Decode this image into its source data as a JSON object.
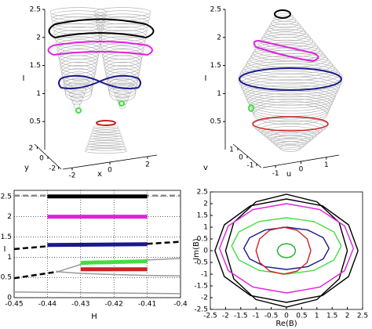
{
  "chart_data": [
    {
      "type": "surface3d",
      "xlabel": "x",
      "ylabel": "y",
      "zlabel": "I",
      "xlim": [
        -2.5,
        2.5
      ],
      "xticks": [
        -2,
        0,
        2
      ],
      "ylim": [
        -2.5,
        2.5
      ],
      "yticks": [
        -2,
        0,
        2
      ],
      "zlim": [
        0,
        2.5
      ],
      "zticks": [
        0.5,
        1,
        1.5,
        2,
        2.5
      ]
    },
    {
      "type": "surface3d",
      "xlabel": "u",
      "ylabel": "v",
      "zlabel": "I",
      "xlim": [
        -1.5,
        1.5
      ],
      "xticks": [
        -1,
        0,
        1
      ],
      "ylim": [
        -1.5,
        1.5
      ],
      "yticks": [
        -1,
        0,
        1
      ],
      "zlim": [
        0,
        2.5
      ],
      "zticks": [
        0.5,
        1,
        1.5,
        2,
        2.5
      ]
    },
    {
      "type": "line",
      "xlabel": "H",
      "ylabel": "I",
      "grid": true,
      "xlim": [
        -0.45,
        -0.4
      ],
      "xticks": [
        -0.45,
        -0.44,
        -0.43,
        -0.42,
        -0.41,
        -0.4
      ],
      "ylim": [
        0,
        2.65
      ],
      "yticks": [
        0,
        0.5,
        1,
        1.5,
        2,
        2.5
      ],
      "series": [
        {
          "color": "#888888",
          "style": "dashed",
          "x": [
            -0.45,
            -0.4
          ],
          "y": [
            2.52,
            2.52
          ]
        },
        {
          "color": "#000000",
          "style": "thick",
          "x": [
            -0.44,
            -0.41
          ],
          "y": [
            2.5,
            2.5
          ]
        },
        {
          "color": "#e020e0",
          "style": "thick",
          "x": [
            -0.44,
            -0.41
          ],
          "y": [
            2.0,
            2.0
          ]
        },
        {
          "color": "#000000",
          "style": "dashed",
          "x": [
            -0.45,
            -0.44
          ],
          "y": [
            1.2,
            1.27
          ]
        },
        {
          "color": "#1a1a8c",
          "style": "thick",
          "x": [
            -0.44,
            -0.41
          ],
          "y": [
            1.3,
            1.32
          ]
        },
        {
          "color": "#000000",
          "style": "dashed",
          "x": [
            -0.41,
            -0.4
          ],
          "y": [
            1.33,
            1.38
          ]
        },
        {
          "color": "#000000",
          "style": "dashed",
          "x": [
            -0.45,
            -0.437
          ],
          "y": [
            0.48,
            0.64
          ]
        },
        {
          "color": "#999999",
          "style": "thin",
          "x": [
            -0.437,
            -0.43,
            -0.42,
            -0.41,
            -0.4
          ],
          "y": [
            0.64,
            0.82,
            0.88,
            0.93,
            0.97
          ]
        },
        {
          "color": "#999999",
          "style": "thin",
          "x": [
            -0.437,
            -0.43,
            -0.42,
            -0.41,
            -0.4
          ],
          "y": [
            0.64,
            0.6,
            0.57,
            0.55,
            0.54
          ]
        },
        {
          "color": "#44dd44",
          "style": "thick",
          "x": [
            -0.43,
            -0.41
          ],
          "y": [
            0.86,
            0.9
          ]
        },
        {
          "color": "#cc2222",
          "style": "thick",
          "x": [
            -0.43,
            -0.41
          ],
          "y": [
            0.7,
            0.7
          ]
        },
        {
          "color": "#999999",
          "style": "thin",
          "x": [
            -0.45,
            -0.4
          ],
          "y": [
            0.14,
            0.1
          ]
        }
      ]
    },
    {
      "type": "line",
      "xlabel": "Re(B)",
      "ylabel": "Im(B)",
      "grid": false,
      "xlim": [
        -2.5,
        2.5
      ],
      "xticks": [
        -2.5,
        -2,
        -1.5,
        -1,
        -0.5,
        0,
        0.5,
        1,
        1.5,
        2,
        2.5
      ],
      "ylim": [
        -2.5,
        2.5
      ],
      "yticks": [
        -2.5,
        -2,
        -1.5,
        -1,
        -0.5,
        0,
        0.5,
        1,
        1.5,
        2,
        2.5
      ],
      "series": [
        {
          "color": "#000000",
          "style": "medium",
          "x": [
            2.35,
            2.04,
            1.18,
            0,
            -1.18,
            -2.04,
            -2.35,
            -2.04,
            -1.18,
            0,
            1.18,
            2.04,
            2.35
          ],
          "y": [
            0,
            1.1,
            1.91,
            2.2,
            1.91,
            1.1,
            0,
            -1.1,
            -1.91,
            -2.2,
            -1.91,
            -1.1,
            0
          ]
        },
        {
          "color": "#000000",
          "style": "medium",
          "x": [
            2,
            1.73,
            1,
            0,
            -1,
            -1.73,
            -2,
            -1.73,
            -1,
            0,
            1,
            1.73,
            2
          ],
          "y": [
            0,
            1.2,
            2.08,
            2.4,
            2.08,
            1.2,
            0,
            -1.2,
            -2.08,
            -2.4,
            -2.08,
            -1.2,
            0
          ]
        },
        {
          "color": "#e020e0",
          "style": "medium",
          "x": [
            2.2,
            1.91,
            1.1,
            0,
            -1.1,
            -1.91,
            -2.2,
            -1.91,
            -1.1,
            0,
            1.1,
            1.91,
            2.2
          ],
          "y": [
            0.1,
            1.05,
            1.75,
            2.0,
            1.75,
            1.05,
            0.1,
            -0.85,
            -1.55,
            -1.8,
            -1.55,
            -0.85,
            0.1
          ]
        },
        {
          "color": "#44dd44",
          "style": "medium",
          "x": [
            1.8,
            1.56,
            0.9,
            0,
            -0.9,
            -1.56,
            -1.8,
            -1.56,
            -0.9,
            0,
            0.9,
            1.56,
            1.8
          ],
          "y": [
            0.2,
            0.8,
            1.24,
            1.4,
            1.24,
            0.8,
            0.2,
            -0.4,
            -0.84,
            -1.0,
            -0.84,
            -0.4,
            0.2
          ]
        },
        {
          "color": "#1a1a8c",
          "style": "medium",
          "x": [
            1.4,
            1.21,
            0.7,
            0,
            -0.7,
            -1.21,
            -1.4,
            -1.21,
            -0.7,
            0,
            0.7,
            1.21,
            1.4
          ],
          "y": [
            0.1,
            0.55,
            0.88,
            1.0,
            0.88,
            0.55,
            0.1,
            -0.35,
            -0.68,
            -0.8,
            -0.68,
            -0.35,
            0.1
          ]
        },
        {
          "color": "#cc2222",
          "style": "medium",
          "x": [
            0.8,
            0.68,
            0.35,
            -0.1,
            -0.55,
            -0.88,
            -1.0,
            -0.88,
            -0.55,
            -0.1,
            0.35,
            0.68,
            0.8
          ],
          "y": [
            0,
            0.5,
            0.87,
            1,
            0.87,
            0.5,
            0,
            -0.5,
            -0.87,
            -1,
            -0.87,
            -0.5,
            0
          ]
        },
        {
          "color": "#22aa22",
          "style": "medium",
          "x": [
            0.3,
            0.26,
            0.15,
            0,
            -0.15,
            -0.26,
            -0.3,
            -0.26,
            -0.15,
            0,
            0.15,
            0.26,
            0.3
          ],
          "y": [
            0,
            0.15,
            0.26,
            0.3,
            0.26,
            0.15,
            0,
            -0.15,
            -0.26,
            -0.3,
            -0.26,
            -0.15,
            0
          ]
        }
      ]
    }
  ]
}
